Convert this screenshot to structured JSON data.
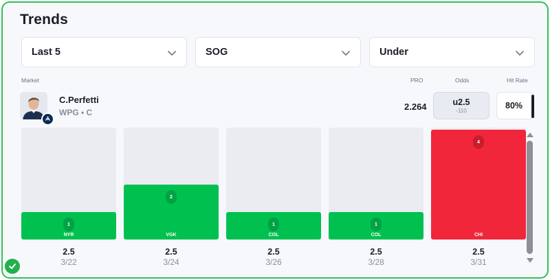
{
  "title": "Trends",
  "filters": [
    {
      "label": "Last 5",
      "icon": "chevron-down-icon"
    },
    {
      "label": "SOG",
      "icon": "chevron-down-icon"
    },
    {
      "label": "Under",
      "icon": "chevron-down-icon"
    }
  ],
  "headers": {
    "market": "Market",
    "pro": "PRO",
    "odds": "Odds",
    "hit_rate": "Hit Rate"
  },
  "player": {
    "name": "C.Perfetti",
    "team_pos": "WPG • C",
    "avatar_icon": "player-headshot",
    "team_logo_icon": "jets-logo-icon"
  },
  "pro_value": "2.264",
  "odds": {
    "line": "u2.5",
    "price": "-110"
  },
  "hit_rate": "80%",
  "colors": {
    "hit": "#00c150",
    "miss": "#f1263b",
    "empty": "#ebebf2",
    "border": "#2fc05a"
  },
  "chart_data": {
    "type": "bar",
    "categories": [
      "3/22",
      "3/24",
      "3/26",
      "3/28",
      "3/31"
    ],
    "opponents": [
      "NYR",
      "VGK",
      "COL",
      "COL",
      "CHI"
    ],
    "values": [
      1,
      2,
      1,
      1,
      4
    ],
    "lines": [
      "2.5",
      "2.5",
      "2.5",
      "2.5",
      "2.5"
    ],
    "result": [
      "hit",
      "hit",
      "hit",
      "hit",
      "miss"
    ],
    "ymax": 4
  },
  "scrollbar": {
    "up_icon": "scroll-up-arrow-icon",
    "down_icon": "scroll-down-arrow-icon"
  },
  "status_icon": "check-circle-icon"
}
